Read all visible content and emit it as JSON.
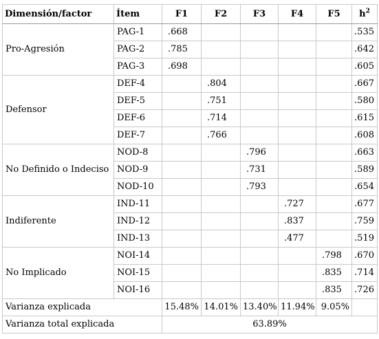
{
  "header": {
    "dimension": "Dimensión/factor",
    "item": "Ítem",
    "f1": "F1",
    "f2": "F2",
    "f3": "F3",
    "f4": "F4",
    "f5": "F5",
    "h_base": "h",
    "h_sup": "2"
  },
  "groups": [
    {
      "dimension": "Pro-Agresión",
      "factor": 1,
      "rows": [
        {
          "item": "PAG-1",
          "loading": ".668",
          "h2": ".535"
        },
        {
          "item": "PAG-2",
          "loading": ".785",
          "h2": ".642"
        },
        {
          "item": "PAG-3",
          "loading": ".698",
          "h2": ".605"
        }
      ]
    },
    {
      "dimension": "Defensor",
      "factor": 2,
      "rows": [
        {
          "item": "DEF-4",
          "loading": ".804",
          "h2": ".667"
        },
        {
          "item": "DEF-5",
          "loading": ".751",
          "h2": ".580"
        },
        {
          "item": "DEF-6",
          "loading": ".714",
          "h2": ".615"
        },
        {
          "item": "DEF-7",
          "loading": ".766",
          "h2": ".608"
        }
      ]
    },
    {
      "dimension": "No Definido o Indeciso",
      "factor": 3,
      "rows": [
        {
          "item": "NOD-8",
          "loading": ".796",
          "h2": ".663"
        },
        {
          "item": "NOD-9",
          "loading": ".731",
          "h2": ".589"
        },
        {
          "item": "NOD-10",
          "loading": ".793",
          "h2": ".654"
        }
      ]
    },
    {
      "dimension": "Indiferente",
      "factor": 4,
      "rows": [
        {
          "item": "IND-11",
          "loading": ".727",
          "h2": ".677"
        },
        {
          "item": "IND-12",
          "loading": ".837",
          "h2": ".759"
        },
        {
          "item": "IND-13",
          "loading": ".477",
          "h2": ".519"
        }
      ]
    },
    {
      "dimension": "No Implicado",
      "factor": 5,
      "rows": [
        {
          "item": "NOI-14",
          "loading": ".798",
          "h2": ".670"
        },
        {
          "item": "NOI-15",
          "loading": ".835",
          "h2": ".714"
        },
        {
          "item": "NOI-16",
          "loading": ".835",
          "h2": ".726"
        }
      ]
    }
  ],
  "summary": {
    "explained_label": "Varianza explicada",
    "explained": [
      "15.48%",
      "14.01%",
      "13.40%",
      "11.94%",
      "9.05%"
    ],
    "total_label": "Varianza total explicada",
    "total": "63.89%"
  }
}
